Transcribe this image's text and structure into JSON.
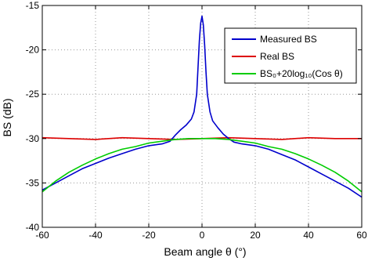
{
  "chart_data": {
    "type": "line",
    "title": "",
    "xlabel": "Beam angle θ (°)",
    "ylabel": "BS (dB)",
    "xlim": [
      -60,
      60
    ],
    "ylim": [
      -40,
      -15
    ],
    "x_ticks": [
      -60,
      -40,
      -20,
      0,
      20,
      40,
      60
    ],
    "y_ticks": [
      -15,
      -20,
      -25,
      -30,
      -35,
      -40
    ],
    "x_tick_labels": [
      "-60",
      "-40",
      "-20",
      "0",
      "20",
      "40",
      "60"
    ],
    "y_tick_labels": [
      "-15",
      "-20",
      "-25",
      "-30",
      "-35",
      "-40"
    ],
    "grid": true,
    "legend_position": "top-right",
    "series": [
      {
        "name": "Measured BS",
        "color": "#0000cc",
        "x": [
          -60,
          -55,
          -50,
          -45,
          -40,
          -35,
          -30,
          -25,
          -20,
          -15,
          -12,
          -10,
          -8,
          -6,
          -4,
          -3,
          -2,
          -1.5,
          -1,
          -0.5,
          0,
          0.5,
          1,
          1.5,
          2,
          3,
          4,
          6,
          8,
          10,
          12,
          15,
          20,
          25,
          30,
          35,
          40,
          45,
          50,
          55,
          60
        ],
        "values": [
          -35.8,
          -35.0,
          -34.2,
          -33.4,
          -32.8,
          -32.2,
          -31.7,
          -31.2,
          -30.8,
          -30.6,
          -30.3,
          -29.6,
          -29.0,
          -28.5,
          -27.8,
          -27.0,
          -25.0,
          -22.0,
          -19.0,
          -17.0,
          -16.2,
          -17.2,
          -19.5,
          -22.5,
          -25.0,
          -27.0,
          -28.0,
          -28.8,
          -29.5,
          -30.0,
          -30.4,
          -30.6,
          -30.8,
          -31.2,
          -31.8,
          -32.4,
          -33.2,
          -34.0,
          -34.8,
          -35.6,
          -36.6
        ]
      },
      {
        "name": "Real BS",
        "color": "#dd0000",
        "x": [
          -60,
          -50,
          -40,
          -30,
          -20,
          -10,
          0,
          10,
          20,
          30,
          40,
          50,
          60
        ],
        "values": [
          -29.9,
          -30.0,
          -30.1,
          -29.9,
          -30.0,
          -30.1,
          -30.0,
          -29.9,
          -30.0,
          -30.1,
          -29.9,
          -30.0,
          -30.0
        ]
      },
      {
        "name": "BS₀+20log₁₀(Cos θ)",
        "color": "#00cc00",
        "x": [
          -60,
          -55,
          -50,
          -45,
          -40,
          -35,
          -30,
          -25,
          -20,
          -15,
          -10,
          -5,
          0,
          5,
          10,
          15,
          20,
          25,
          30,
          35,
          40,
          45,
          50,
          55,
          60
        ],
        "values": [
          -36.0,
          -34.8,
          -33.8,
          -33.0,
          -32.3,
          -31.7,
          -31.2,
          -30.9,
          -30.5,
          -30.3,
          -30.1,
          -30.0,
          -30.0,
          -30.0,
          -30.1,
          -30.3,
          -30.5,
          -30.9,
          -31.2,
          -31.7,
          -32.3,
          -33.0,
          -33.8,
          -34.8,
          -36.0
        ]
      }
    ]
  }
}
